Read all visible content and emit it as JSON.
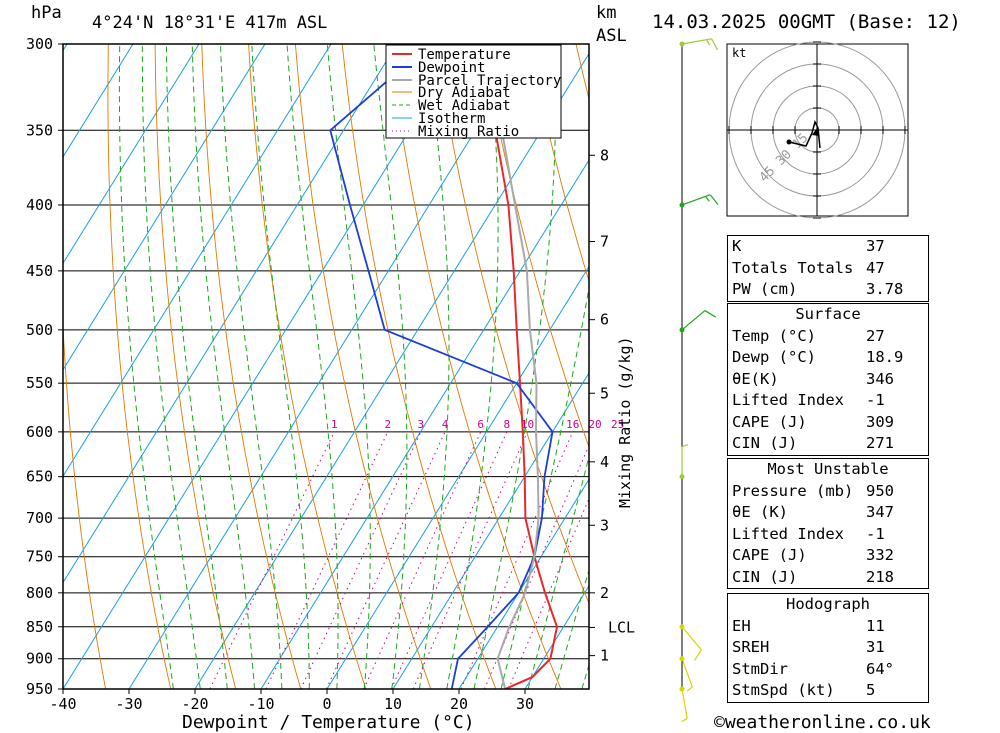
{
  "header": {
    "pressure_unit": "hPa",
    "location": "4°24'N  18°31'E  417m  ASL",
    "height_unit_top": "km",
    "height_unit_bottom": "ASL",
    "datetime": "14.03.2025  00GMT  (Base: 12)"
  },
  "footer": {
    "copyright": "©weatheronline.co.uk"
  },
  "chart_data": {
    "type": "line",
    "xlabel": "Dewpoint / Temperature (°C)",
    "ylabel": "hPa",
    "y2label": "Mixing Ratio (g/kg)",
    "x_ticks": [
      "-40",
      "-30",
      "-20",
      "-10",
      "0",
      "10",
      "20",
      "30"
    ],
    "pressure_ticks": [
      300,
      350,
      400,
      450,
      500,
      550,
      600,
      650,
      700,
      750,
      800,
      850,
      900,
      950
    ],
    "ylim": [
      950,
      300
    ],
    "xlim_at_surface": [
      -40,
      40
    ],
    "skew": true,
    "height_ticks_km": [
      {
        "label": "8",
        "p": 366
      },
      {
        "label": "7",
        "p": 427
      },
      {
        "label": "6",
        "p": 491
      },
      {
        "label": "5",
        "p": 560
      },
      {
        "label": "4",
        "p": 633
      },
      {
        "label": "3",
        "p": 709
      },
      {
        "label": "2",
        "p": 800
      },
      {
        "label": "LCL",
        "p": 851
      },
      {
        "label": "1",
        "p": 895
      }
    ],
    "mixing_ratio_labels": [
      "1",
      "2",
      "3",
      "4",
      "6",
      "8",
      "10",
      "16",
      "20",
      "25"
    ],
    "legend": [
      "Temperature",
      "Dewpoint",
      "Parcel Trajectory",
      "Dry Adiabat",
      "Wet Adiabat",
      "Isotherm",
      "Mixing Ratio"
    ],
    "colors": {
      "temperature": "#e8282b",
      "dewpoint": "#1b3ed8",
      "parcel": "#a9a9a9",
      "dry_adiabat": "#e07800",
      "wet_adiabat": "#1aa81a",
      "isotherm": "#1a9ee0",
      "mixing_ratio": "#cc0088"
    },
    "series": [
      {
        "name": "Temperature",
        "points": [
          [
            950,
            27
          ],
          [
            930,
            30
          ],
          [
            900,
            31
          ],
          [
            850,
            29
          ],
          [
            800,
            24
          ],
          [
            750,
            19
          ],
          [
            700,
            14
          ],
          [
            650,
            10
          ],
          [
            600,
            5.5
          ],
          [
            550,
            0.5
          ],
          [
            500,
            -5
          ],
          [
            450,
            -11
          ],
          [
            400,
            -18
          ],
          [
            350,
            -27
          ],
          [
            300,
            -37
          ]
        ]
      },
      {
        "name": "Dewpoint",
        "points": [
          [
            950,
            18.9
          ],
          [
            900,
            17
          ],
          [
            850,
            18.5
          ],
          [
            800,
            20
          ],
          [
            750,
            19
          ],
          [
            700,
            16.5
          ],
          [
            650,
            13
          ],
          [
            600,
            10
          ],
          [
            550,
            0
          ],
          [
            500,
            -25
          ],
          [
            450,
            -33
          ],
          [
            400,
            -42
          ],
          [
            350,
            -52
          ],
          [
            300,
            -45
          ]
        ]
      },
      {
        "name": "Parcel Trajectory",
        "points": [
          [
            950,
            27
          ],
          [
            900,
            23
          ],
          [
            851,
            21.8
          ],
          [
            800,
            21
          ],
          [
            750,
            19
          ],
          [
            700,
            16
          ],
          [
            650,
            12
          ],
          [
            600,
            7.5
          ],
          [
            550,
            3
          ],
          [
            500,
            -3
          ],
          [
            450,
            -9
          ],
          [
            400,
            -17
          ],
          [
            350,
            -26
          ],
          [
            300,
            -38
          ]
        ]
      }
    ],
    "wind_barbs": [
      {
        "p": 300,
        "dir": 260,
        "kt": 15
      },
      {
        "p": 400,
        "dir": 250,
        "kt": 15
      },
      {
        "p": 500,
        "dir": 230,
        "kt": 10
      },
      {
        "p": 650,
        "dir": 180,
        "kt": 5
      },
      {
        "p": 850,
        "dir": 320,
        "kt": 10
      },
      {
        "p": 900,
        "dir": 340,
        "kt": 5
      },
      {
        "p": 950,
        "dir": 350,
        "kt": 5
      }
    ]
  },
  "hodograph": {
    "unit": "kt",
    "ring_labels": [
      "15",
      "30",
      "45"
    ]
  },
  "indices": {
    "general": [
      {
        "label": "K",
        "value": "37"
      },
      {
        "label": "Totals Totals",
        "value": "47"
      },
      {
        "label": "PW (cm)",
        "value": "3.78"
      }
    ],
    "surface": {
      "title": "Surface",
      "rows": [
        {
          "label": "Temp (°C)",
          "value": "27"
        },
        {
          "label": "Dewp (°C)",
          "value": "18.9"
        },
        {
          "label": "θE(K)",
          "value": "346"
        },
        {
          "label": "Lifted Index",
          "value": "-1"
        },
        {
          "label": "CAPE (J)",
          "value": "309"
        },
        {
          "label": "CIN (J)",
          "value": "271"
        }
      ]
    },
    "most_unstable": {
      "title": "Most Unstable",
      "rows": [
        {
          "label": "Pressure (mb)",
          "value": "950"
        },
        {
          "label": "θE (K)",
          "value": "347"
        },
        {
          "label": "Lifted Index",
          "value": "-1"
        },
        {
          "label": "CAPE (J)",
          "value": "332"
        },
        {
          "label": "CIN (J)",
          "value": "218"
        }
      ]
    },
    "hodograph": {
      "title": "Hodograph",
      "rows": [
        {
          "label": "EH",
          "value": "11"
        },
        {
          "label": "SREH",
          "value": "31"
        },
        {
          "label": "StmDir",
          "value": "64°"
        },
        {
          "label": "StmSpd (kt)",
          "value": "5"
        }
      ]
    }
  }
}
